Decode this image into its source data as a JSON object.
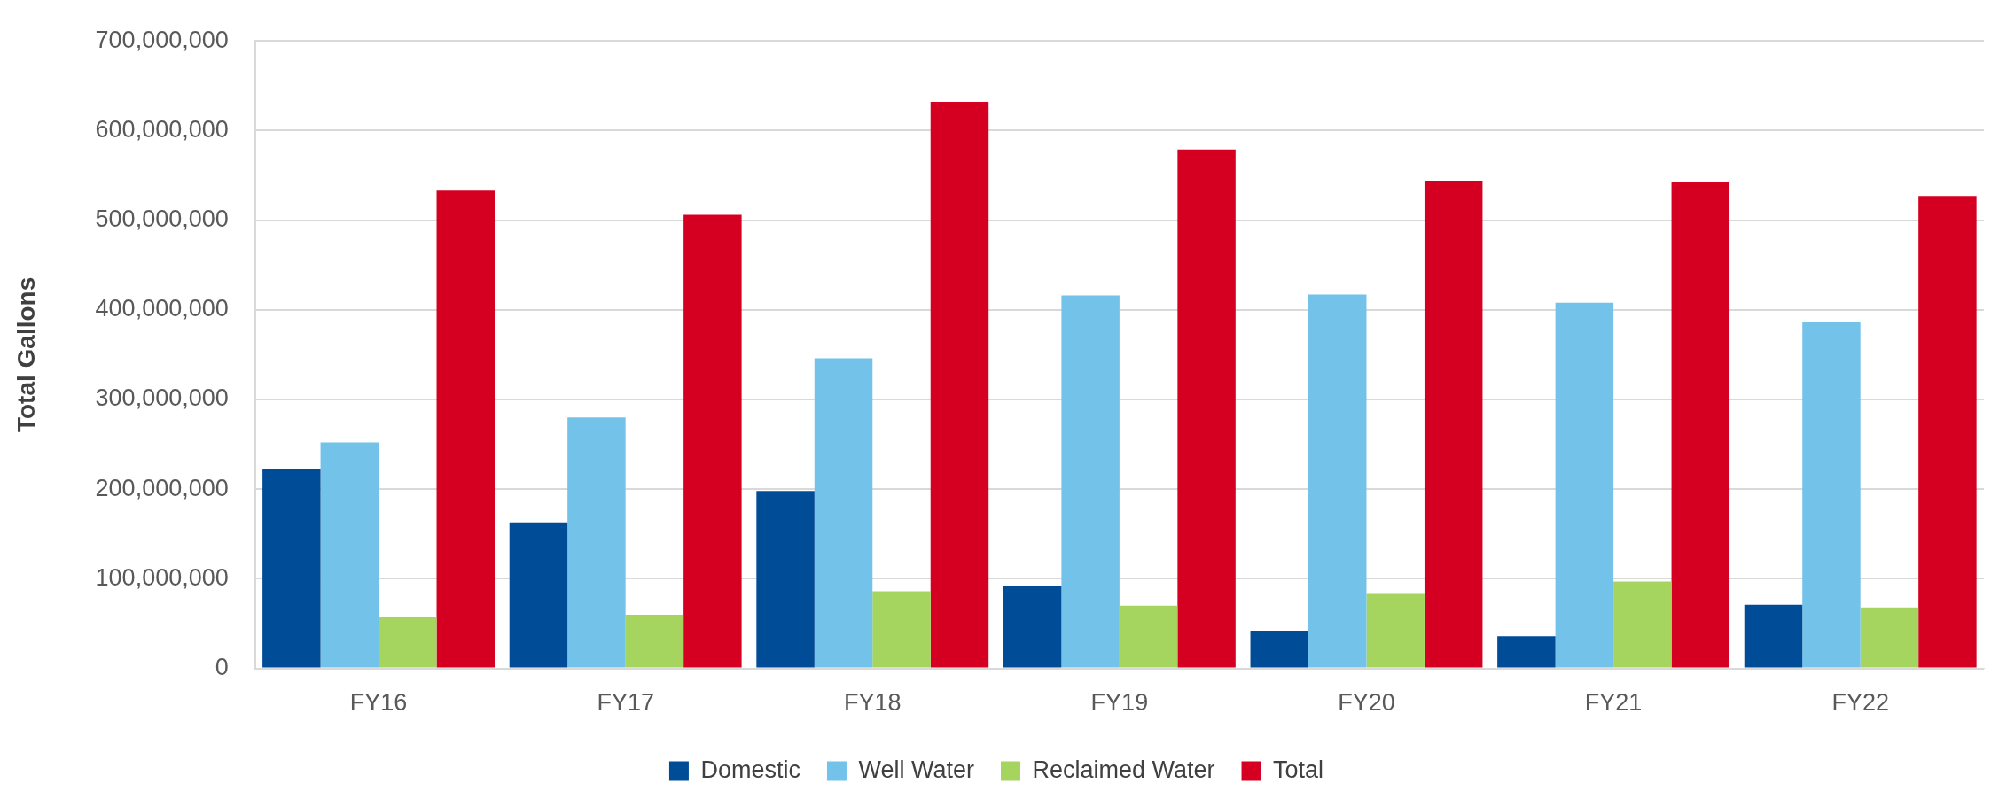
{
  "chart_data": {
    "type": "bar",
    "ylabel": "Total Gallons",
    "categories": [
      "FY16",
      "FY17",
      "FY18",
      "FY19",
      "FY20",
      "FY21",
      "FY22"
    ],
    "series": [
      {
        "name": "Domestic",
        "color": "#004c97",
        "values": [
          222000000,
          163000000,
          198000000,
          92000000,
          42000000,
          36000000,
          71000000
        ]
      },
      {
        "name": "Well Water",
        "color": "#73c2e9",
        "values": [
          252000000,
          280000000,
          346000000,
          416000000,
          417000000,
          408000000,
          386000000
        ]
      },
      {
        "name": "Reclaimed Water",
        "color": "#a5d55f",
        "values": [
          57000000,
          60000000,
          86000000,
          70000000,
          83000000,
          97000000,
          68000000
        ]
      },
      {
        "name": "Total",
        "color": "#d50021",
        "values": [
          533000000,
          506000000,
          632000000,
          579000000,
          544000000,
          542000000,
          527000000
        ]
      }
    ],
    "ylim": [
      0,
      700000000
    ],
    "yticks": [
      0,
      {
        "value": 100000000,
        "label": "100,000,000"
      },
      {
        "value": 200000000,
        "label": "200,000,000"
      },
      {
        "value": 300000000,
        "label": "300,000,000"
      },
      {
        "value": 400000000,
        "label": "400,000,000"
      },
      {
        "value": 500000000,
        "label": "500,000,000"
      },
      {
        "value": 600000000,
        "label": "600,000,000"
      },
      {
        "value": 700000000,
        "label": "700,000,000"
      }
    ],
    "grid": "y",
    "legend": "bottom"
  }
}
